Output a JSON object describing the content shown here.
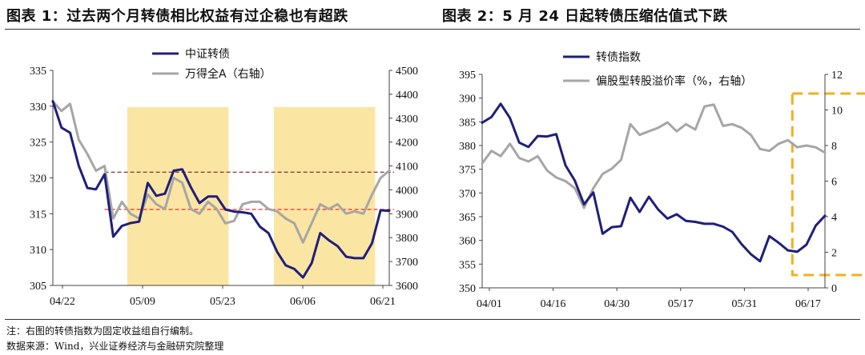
{
  "titles": {
    "left": "图表 1：过去两个月转债相比权益有过企稳也有超跌",
    "right": "图表 2：5 月 24 日起转债压缩估值式下跌"
  },
  "footer": {
    "note": "注：右图的转债指数为固定收益组自行编制。",
    "source": "数据来源：Wind，兴业证券经济与金融研究院整理"
  },
  "colors": {
    "navy": "#1f1f7a",
    "gray": "#a6a6a6",
    "highlight": "#fbe5a3",
    "ref_line_red": "#e02020",
    "ref_line_dark": "#7a1e1e",
    "dashed_box": "#f2b01e"
  },
  "chart_data": [
    {
      "type": "line",
      "legend_position": "top-center",
      "grid": false,
      "x_tick_labels": [
        "04/22",
        "05/09",
        "05/23",
        "06/06",
        "06/21"
      ],
      "y_left": {
        "range": [
          305,
          335
        ],
        "ticks": [
          305,
          310,
          315,
          320,
          325,
          330,
          335
        ]
      },
      "y_right": {
        "range": [
          3600,
          4500
        ],
        "ticks": [
          3600,
          3700,
          3800,
          3900,
          4000,
          4100,
          4200,
          4300,
          4400,
          4500
        ]
      },
      "highlight_bands_index": [
        [
          9,
          20
        ],
        [
          26,
          37
        ]
      ],
      "reference_lines_left": [
        320.8,
        315.6
      ],
      "series": [
        {
          "name": "中证转债",
          "axis": "left",
          "values": [
            330.7,
            327.0,
            326.3,
            321.7,
            318.6,
            318.4,
            320.5,
            311.8,
            313.3,
            313.7,
            313.9,
            319.3,
            317.5,
            317.8,
            321.0,
            321.2,
            318.7,
            316.5,
            317.4,
            317.4,
            315.6,
            315.3,
            315.2,
            315.0,
            313.2,
            312.3,
            309.7,
            307.8,
            307.3,
            306.1,
            308.1,
            312.3,
            311.3,
            310.5,
            309.0,
            308.8,
            308.8,
            310.9,
            315.5,
            315.4
          ]
        },
        {
          "name": "万得全A（右轴）",
          "axis": "right",
          "values": [
            4370,
            4330,
            4360,
            4210,
            4150,
            4080,
            4100,
            3880,
            3950,
            3900,
            3880,
            3980,
            3940,
            3920,
            4050,
            4030,
            3920,
            3900,
            3950,
            3920,
            3860,
            3870,
            3940,
            3950,
            3950,
            3920,
            3910,
            3880,
            3860,
            3780,
            3860,
            3940,
            3920,
            3940,
            3900,
            3910,
            3900,
            3980,
            4050,
            4080
          ]
        }
      ]
    },
    {
      "type": "line",
      "legend_position": "top-center",
      "grid": false,
      "x_tick_labels": [
        "04/01",
        "04/16",
        "04/30",
        "05/17",
        "05/31",
        "06/17"
      ],
      "y_left": {
        "range": [
          350,
          395
        ],
        "ticks": [
          350,
          355,
          360,
          365,
          370,
          375,
          380,
          385,
          390,
          395
        ]
      },
      "y_right": {
        "range": [
          0,
          12
        ],
        "ticks": [
          0,
          2,
          4,
          6,
          8,
          10,
          12
        ]
      },
      "highlight_box_index": [
        34,
        48
      ],
      "series": [
        {
          "name": "转债指数",
          "axis": "left",
          "values": [
            384.8,
            386.0,
            388.8,
            385.8,
            380.6,
            379.7,
            382.0,
            381.9,
            382.4,
            375.8,
            372.6,
            367.6,
            370.1,
            361.4,
            362.8,
            363.0,
            369.0,
            366.0,
            369.2,
            366.5,
            364.6,
            365.5,
            364.1,
            363.9,
            363.5,
            363.5,
            362.9,
            361.8,
            359.2,
            357.1,
            355.6,
            360.9,
            359.5,
            357.9,
            357.6,
            359.1,
            363.1,
            365.2
          ]
        },
        {
          "name": "偏股型转股溢价率（%，右轴）",
          "axis": "right",
          "values": [
            7.0,
            7.7,
            7.4,
            8.1,
            7.3,
            7.1,
            7.4,
            6.6,
            6.2,
            6.0,
            5.6,
            4.5,
            5.6,
            6.4,
            6.7,
            7.2,
            9.2,
            8.6,
            8.8,
            9.0,
            9.3,
            8.8,
            9.2,
            8.9,
            10.2,
            10.3,
            9.1,
            9.2,
            9.0,
            8.6,
            7.8,
            7.7,
            8.1,
            8.3,
            7.9,
            8.0,
            7.9,
            7.6
          ]
        }
      ]
    }
  ]
}
